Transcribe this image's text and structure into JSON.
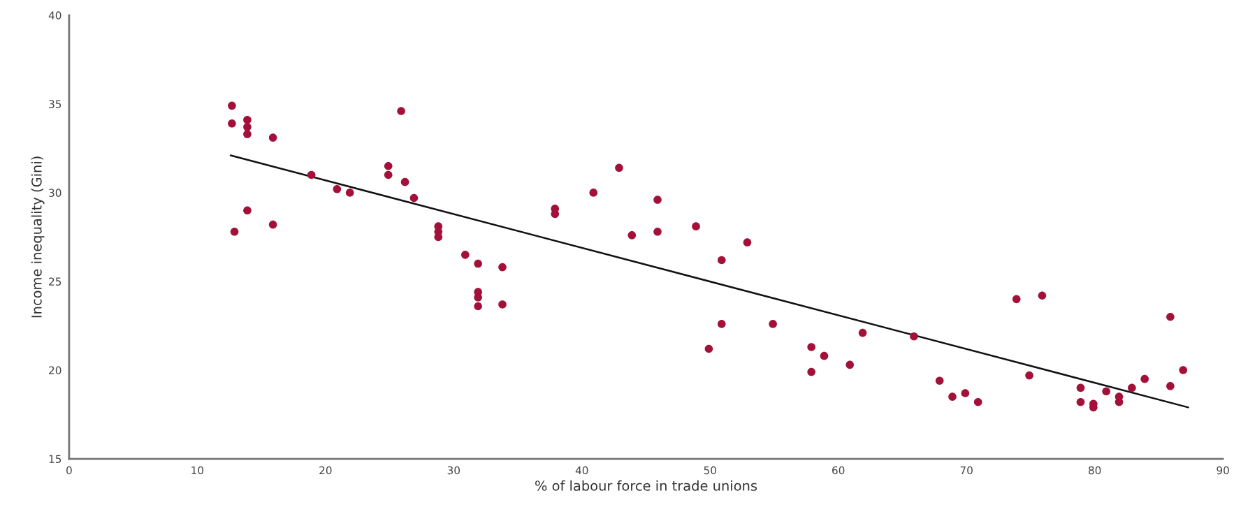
{
  "chart_data": {
    "type": "scatter",
    "xlabel": "% of labour force in trade unions",
    "ylabel": "Income inequality (Gini)",
    "xlim": [
      0,
      90
    ],
    "xticks": [
      0,
      10,
      20,
      30,
      40,
      50,
      60,
      70,
      80,
      90
    ],
    "ylim": [
      15,
      40
    ],
    "yticks": [
      15,
      20,
      25,
      30,
      35,
      40
    ],
    "grid": false,
    "legend": false,
    "series": [
      {
        "color": "#a3113a",
        "marker": "circle",
        "x": [
          12.7,
          12.7,
          12.9,
          13.9,
          13.9,
          13.9,
          13.9,
          15.9,
          15.9,
          18.9,
          20.9,
          21.9,
          24.9,
          24.9,
          25.9,
          26.2,
          26.9,
          28.8,
          28.8,
          28.8,
          30.9,
          31.9,
          31.9,
          31.9,
          31.9,
          33.8,
          33.8,
          37.9,
          37.9,
          40.9,
          42.9,
          43.9,
          45.9,
          45.9,
          48.9,
          49.9,
          50.9,
          50.9,
          52.9,
          54.9,
          57.9,
          57.9,
          58.9,
          60.9,
          61.9,
          65.9,
          67.9,
          68.9,
          69.9,
          70.9,
          73.9,
          74.9,
          75.9,
          78.9,
          78.9,
          79.9,
          79.9,
          80.9,
          81.9,
          81.9,
          82.9,
          83.9,
          85.9,
          85.9,
          86.9
        ],
        "values": [
          34.9,
          33.9,
          27.8,
          34.1,
          33.7,
          33.3,
          29.0,
          33.1,
          28.2,
          31.0,
          30.2,
          30.0,
          31.5,
          31.0,
          34.6,
          30.6,
          29.7,
          28.1,
          27.8,
          27.5,
          26.5,
          26.0,
          24.4,
          24.1,
          23.6,
          25.8,
          23.7,
          29.1,
          28.8,
          30.0,
          31.4,
          27.6,
          29.6,
          27.8,
          28.1,
          21.2,
          26.2,
          22.6,
          27.2,
          22.6,
          21.3,
          19.9,
          20.8,
          20.3,
          22.1,
          21.9,
          19.4,
          18.5,
          18.7,
          18.2,
          24.0,
          19.7,
          24.2,
          19.0,
          18.2,
          18.1,
          17.9,
          18.8,
          18.5,
          18.2,
          19.0,
          19.5,
          23.0,
          19.1,
          20.0
        ]
      },
      {
        "type": "line",
        "color": "#111111",
        "marker": "none",
        "line_style": "solid",
        "x": [
          12.6,
          87.3
        ],
        "values": [
          32.1,
          17.9
        ]
      }
    ]
  }
}
